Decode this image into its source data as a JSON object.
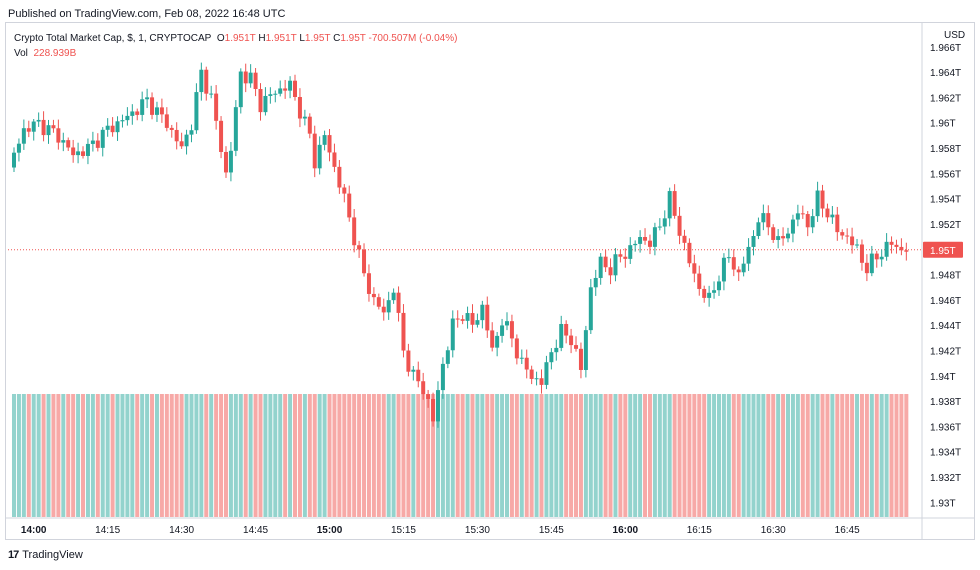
{
  "header": {
    "published": "Published on TradingView.com, Feb 08, 2022 16:48 UTC"
  },
  "legend": {
    "symbol": "Crypto Total Market Cap, $, 1, CRYPTOCAP",
    "o_label": "O",
    "o_value": "1.951T",
    "h_label": "H",
    "h_value": "1.951T",
    "l_label": "L",
    "l_value": "1.95T",
    "c_label": "C",
    "c_value": "1.95T",
    "change": "-700.507M (-0.04%)",
    "vol_label": "Vol",
    "vol_value": "228.939B"
  },
  "footer": {
    "brand": "TradingView",
    "mark": "17"
  },
  "colors": {
    "up": "#26a69a",
    "down": "#ef5350",
    "vol_up": "#93d3cd",
    "vol_down": "#f7a9a7",
    "price_line": "#ef5350"
  },
  "chart_data": {
    "type": "candlestick",
    "title": "Crypto Total Market Cap, $, 1, CRYPTOCAP",
    "currency": "USD",
    "ylim": [
      1.9288,
      1.968
    ],
    "y_ticks": [
      "1.93T",
      "1.932T",
      "1.934T",
      "1.936T",
      "1.938T",
      "1.94T",
      "1.942T",
      "1.944T",
      "1.946T",
      "1.948T",
      "1.95T",
      "1.952T",
      "1.954T",
      "1.956T",
      "1.958T",
      "1.96T",
      "1.962T",
      "1.964T",
      "1.966T"
    ],
    "y_tick_values": [
      1.93,
      1.932,
      1.934,
      1.936,
      1.938,
      1.94,
      1.942,
      1.944,
      1.946,
      1.948,
      1.95,
      1.952,
      1.954,
      1.956,
      1.958,
      1.96,
      1.962,
      1.964,
      1.966
    ],
    "x_ticks": [
      {
        "label": "14:00",
        "minute": 0,
        "bold": true
      },
      {
        "label": "14:15",
        "minute": 15,
        "bold": false
      },
      {
        "label": "14:30",
        "minute": 30,
        "bold": false
      },
      {
        "label": "14:45",
        "minute": 45,
        "bold": false
      },
      {
        "label": "15:00",
        "minute": 60,
        "bold": true
      },
      {
        "label": "15:15",
        "minute": 75,
        "bold": false
      },
      {
        "label": "15:30",
        "minute": 90,
        "bold": false
      },
      {
        "label": "15:45",
        "minute": 105,
        "bold": false
      },
      {
        "label": "16:00",
        "minute": 120,
        "bold": true
      },
      {
        "label": "16:15",
        "minute": 135,
        "bold": false
      },
      {
        "label": "16:30",
        "minute": 150,
        "bold": false
      },
      {
        "label": "16:45",
        "minute": 165,
        "bold": false
      }
    ],
    "start_minute": -4,
    "last_price": 1.95,
    "last_price_label": "1.95T",
    "path_points": [
      [
        -4,
        1.9565
      ],
      [
        -1,
        1.9595
      ],
      [
        2,
        1.96
      ],
      [
        6,
        1.959
      ],
      [
        9,
        1.9575
      ],
      [
        12,
        1.958
      ],
      [
        16,
        1.9595
      ],
      [
        20,
        1.9605
      ],
      [
        24,
        1.9618
      ],
      [
        28,
        1.96
      ],
      [
        31,
        1.958
      ],
      [
        33,
        1.96
      ],
      [
        35,
        1.964
      ],
      [
        37,
        1.962
      ],
      [
        39,
        1.958
      ],
      [
        40,
        1.956
      ],
      [
        41,
        1.958
      ],
      [
        43,
        1.964
      ],
      [
        45,
        1.9635
      ],
      [
        47,
        1.9615
      ],
      [
        50,
        1.9625
      ],
      [
        53,
        1.963
      ],
      [
        55,
        1.961
      ],
      [
        57,
        1.959
      ],
      [
        58,
        1.957
      ],
      [
        60,
        1.959
      ],
      [
        62,
        1.9565
      ],
      [
        64,
        1.954
      ],
      [
        66,
        1.951
      ],
      [
        68,
        1.948
      ],
      [
        70,
        1.946
      ],
      [
        72,
        1.945
      ],
      [
        74,
        1.947
      ],
      [
        76,
        1.942
      ],
      [
        78,
        1.94
      ],
      [
        80,
        1.939
      ],
      [
        81,
        1.938
      ],
      [
        82,
        1.9365
      ],
      [
        84,
        1.941
      ],
      [
        86,
        1.944
      ],
      [
        88,
        1.945
      ],
      [
        90,
        1.944
      ],
      [
        92,
        1.9455
      ],
      [
        94,
        1.942
      ],
      [
        96,
        1.9445
      ],
      [
        98,
        1.943
      ],
      [
        100,
        1.941
      ],
      [
        102,
        1.94
      ],
      [
        104,
        1.9395
      ],
      [
        106,
        1.942
      ],
      [
        108,
        1.9435
      ],
      [
        110,
        1.943
      ],
      [
        112,
        1.9405
      ],
      [
        114,
        1.947
      ],
      [
        116,
        1.949
      ],
      [
        118,
        1.9485
      ],
      [
        120,
        1.9495
      ],
      [
        122,
        1.95
      ],
      [
        124,
        1.951
      ],
      [
        126,
        1.9505
      ],
      [
        128,
        1.952
      ],
      [
        130,
        1.954
      ],
      [
        132,
        1.9515
      ],
      [
        134,
        1.949
      ],
      [
        136,
        1.947
      ],
      [
        138,
        1.946
      ],
      [
        140,
        1.948
      ],
      [
        142,
        1.9495
      ],
      [
        144,
        1.948
      ],
      [
        146,
        1.95
      ],
      [
        148,
        1.9525
      ],
      [
        150,
        1.952
      ],
      [
        152,
        1.9505
      ],
      [
        154,
        1.9515
      ],
      [
        156,
        1.953
      ],
      [
        158,
        1.952
      ],
      [
        160,
        1.954
      ],
      [
        162,
        1.953
      ],
      [
        164,
        1.9515
      ],
      [
        166,
        1.951
      ],
      [
        168,
        1.95
      ],
      [
        170,
        1.9485
      ],
      [
        172,
        1.9495
      ],
      [
        175,
        1.9505
      ],
      [
        177,
        1.95
      ]
    ],
    "volume_levels": [
      0.55,
      0.62,
      0.58,
      0.6,
      0.57,
      0.63,
      0.59,
      0.61,
      0.56,
      0.64,
      0.6,
      0.58
    ],
    "volume_label_shown": "228.939B",
    "candle_count": 181
  }
}
